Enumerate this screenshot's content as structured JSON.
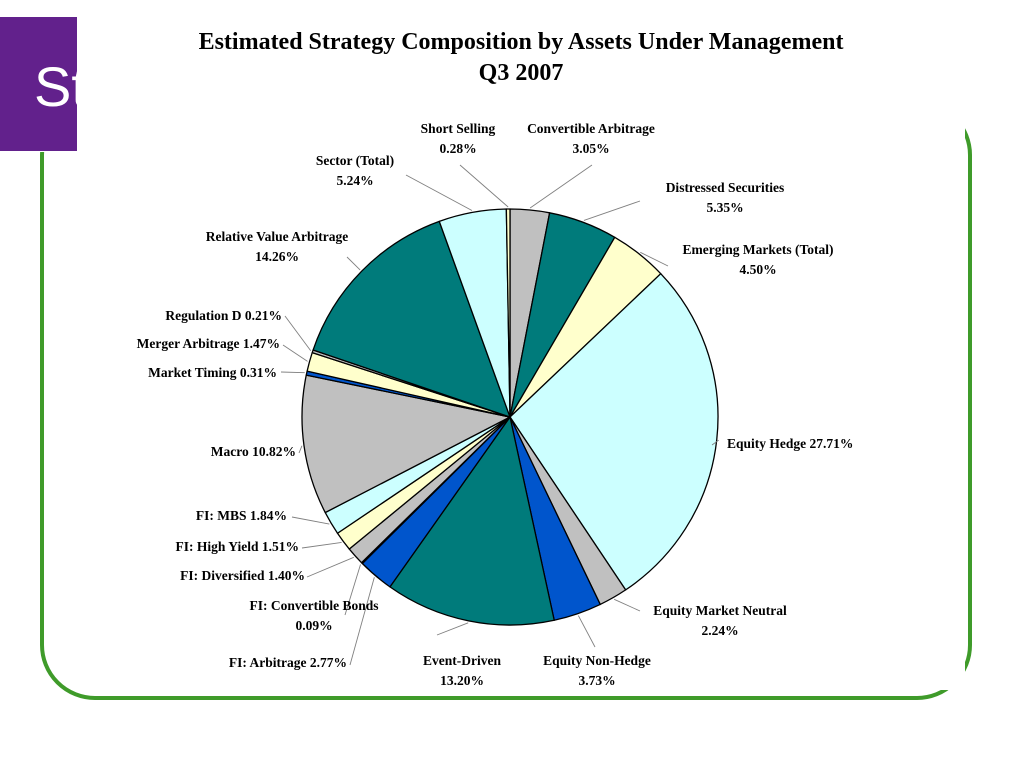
{
  "slide": {
    "title_fragment": "St"
  },
  "colors": {
    "frame_green": "#3f9b2a",
    "title_purple": "#62218c",
    "teal": "#007b7b",
    "light_cyan": "#ccffff",
    "gray": "#c0c0c0",
    "cream": "#ffffcc",
    "blue": "#0055cc",
    "navy": "#002a66"
  },
  "chart_data": {
    "type": "pie",
    "title": "Estimated Strategy Composition by Assets Under Management",
    "subtitle": "Q3 2007",
    "slices": [
      {
        "name": "Convertible Arbitrage",
        "value": 3.05,
        "color": "#c0c0c0",
        "label_lines": [
          "Convertible Arbitrage",
          "3.05%"
        ]
      },
      {
        "name": "Distressed Securities",
        "value": 5.35,
        "color": "#007b7b",
        "label_lines": [
          "Distressed Securities",
          "5.35%"
        ]
      },
      {
        "name": "Emerging Markets (Total)",
        "value": 4.5,
        "color": "#ffffcc",
        "label_lines": [
          "Emerging Markets (Total)",
          "4.50%"
        ]
      },
      {
        "name": "Equity Hedge",
        "value": 27.71,
        "color": "#ccffff",
        "label_lines": [
          "Equity Hedge 27.71%"
        ]
      },
      {
        "name": "Equity Market Neutral",
        "value": 2.24,
        "color": "#c0c0c0",
        "label_lines": [
          "Equity Market Neutral",
          "2.24%"
        ]
      },
      {
        "name": "Equity Non-Hedge",
        "value": 3.73,
        "color": "#0055cc",
        "label_lines": [
          "Equity Non-Hedge",
          "3.73%"
        ]
      },
      {
        "name": "Event-Driven",
        "value": 13.2,
        "color": "#007b7b",
        "label_lines": [
          "Event-Driven",
          "13.20%"
        ]
      },
      {
        "name": "FI: Arbitrage",
        "value": 2.77,
        "color": "#0055cc",
        "label_lines": [
          "FI: Arbitrage 2.77%"
        ]
      },
      {
        "name": "FI: Convertible Bonds",
        "value": 0.09,
        "color": "#002a66",
        "label_lines": [
          "FI: Convertible Bonds",
          "0.09%"
        ]
      },
      {
        "name": "FI: Diversified",
        "value": 1.4,
        "color": "#c0c0c0",
        "label_lines": [
          "FI: Diversified 1.40%"
        ]
      },
      {
        "name": "FI: High Yield",
        "value": 1.51,
        "color": "#ffffcc",
        "label_lines": [
          "FI: High Yield 1.51%"
        ]
      },
      {
        "name": "FI: MBS",
        "value": 1.84,
        "color": "#ccffff",
        "label_lines": [
          "FI: MBS 1.84%"
        ]
      },
      {
        "name": "Macro",
        "value": 10.82,
        "color": "#c0c0c0",
        "label_lines": [
          "Macro 10.82%"
        ]
      },
      {
        "name": "Market Timing",
        "value": 0.31,
        "color": "#0055cc",
        "label_lines": [
          "Market Timing 0.31%"
        ]
      },
      {
        "name": "Merger Arbitrage",
        "value": 1.47,
        "color": "#ffffcc",
        "label_lines": [
          "Merger Arbitrage 1.47%"
        ]
      },
      {
        "name": "Regulation D",
        "value": 0.21,
        "color": "#c0c0c0",
        "label_lines": [
          "Regulation D 0.21%"
        ]
      },
      {
        "name": "Relative Value Arbitrage",
        "value": 14.26,
        "color": "#007b7b",
        "label_lines": [
          "Relative Value Arbitrage",
          "14.26%"
        ]
      },
      {
        "name": "Sector (Total)",
        "value": 5.24,
        "color": "#ccffff",
        "label_lines": [
          "Sector (Total)",
          "5.24%"
        ]
      },
      {
        "name": "Short Selling",
        "value": 0.28,
        "color": "#ffffcc",
        "label_lines": [
          "Short Selling",
          "0.28%"
        ]
      }
    ],
    "start_direction": "12 o'clock",
    "order": "clockwise",
    "legend": "none",
    "labels": "outside with leader lines"
  }
}
